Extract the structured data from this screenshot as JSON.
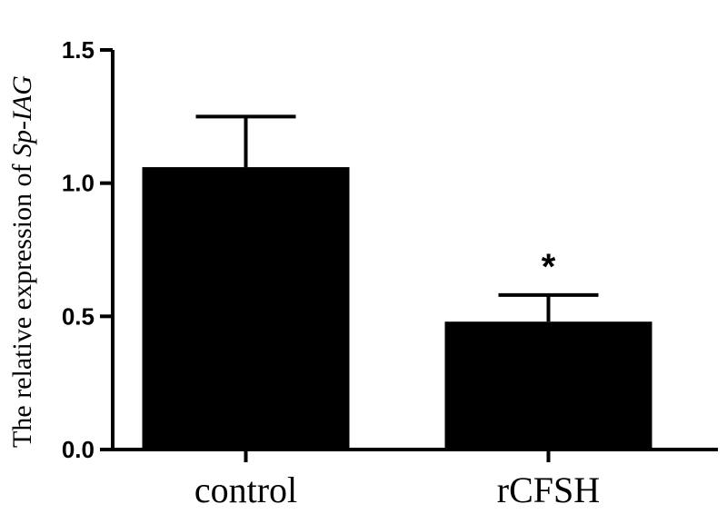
{
  "chart_data": {
    "type": "bar",
    "categories": [
      "control",
      "rCFSH"
    ],
    "values": [
      1.06,
      0.48
    ],
    "error_upper": [
      1.25,
      0.58
    ],
    "annotations": [
      "",
      "*"
    ],
    "ylabel_prefix": "The relative expression of ",
    "ylabel_gene": "Sp-IAG",
    "xlabel": "",
    "ylim": [
      0,
      1.5
    ],
    "yticks": [
      "0.0",
      "0.5",
      "1.0",
      "1.5"
    ],
    "ytick_values": [
      0,
      0.5,
      1.0,
      1.5
    ],
    "bar_color": "#000000",
    "grid": false
  }
}
